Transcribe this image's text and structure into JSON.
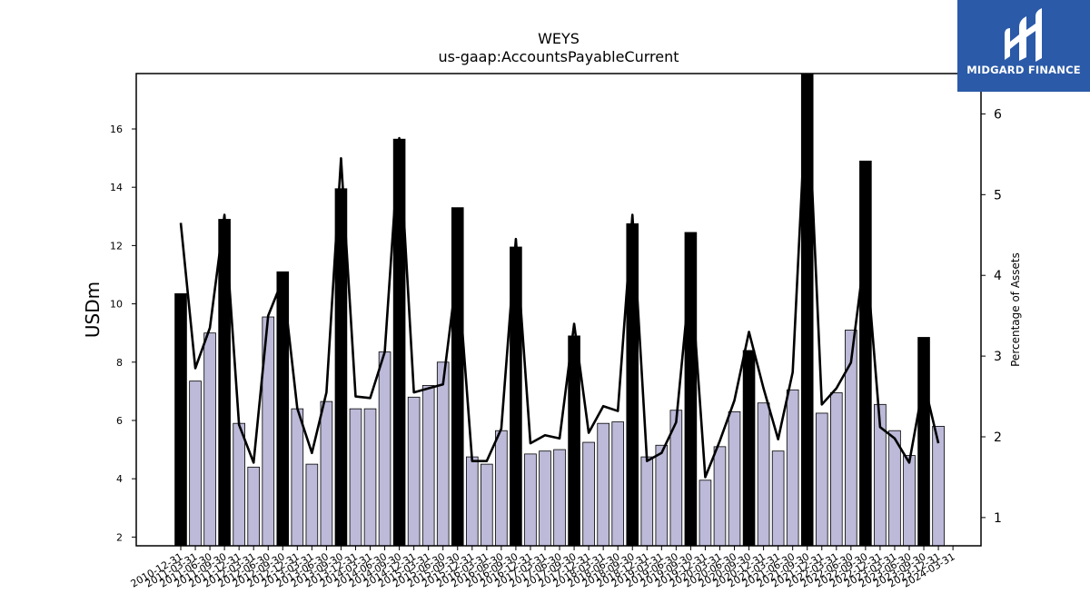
{
  "brand": {
    "name": "MIDGARD FINANCE",
    "bg_color": "#2b5aa8"
  },
  "chart_data": {
    "type": "bar",
    "title": "WEYS",
    "subtitle": "us-gaap:AccountsPayableCurrent",
    "ylabel": "USDm",
    "y2label": "Percentage of Assets",
    "ylim": [
      1.7,
      17.9
    ],
    "y2lim": [
      0.65,
      6.5
    ],
    "yticks": [
      2,
      4,
      6,
      8,
      10,
      12,
      14,
      16
    ],
    "y2ticks": [
      1,
      2,
      3,
      4,
      5,
      6
    ],
    "categories": [
      "2010-12-31",
      "2011-03-31",
      "2011-06-30",
      "2011-09-30",
      "2011-12-31",
      "2012-03-31",
      "2012-06-30",
      "2012-09-30",
      "2012-12-31",
      "2013-03-31",
      "2013-06-30",
      "2013-09-30",
      "2013-12-31",
      "2014-03-31",
      "2014-06-30",
      "2014-09-30",
      "2014-12-31",
      "2015-03-31",
      "2015-06-30",
      "2015-09-30",
      "2015-12-31",
      "2016-03-31",
      "2016-06-30",
      "2016-09-30",
      "2016-12-31",
      "2017-03-31",
      "2017-06-30",
      "2017-09-30",
      "2017-12-31",
      "2018-03-31",
      "2018-06-30",
      "2018-09-30",
      "2018-12-31",
      "2019-03-31",
      "2019-06-30",
      "2019-09-30",
      "2019-12-31",
      "2020-03-31",
      "2020-06-30",
      "2020-09-30",
      "2020-12-31",
      "2021-03-31",
      "2021-06-30",
      "2021-09-30",
      "2021-12-31",
      "2022-03-31",
      "2022-06-30",
      "2022-09-30",
      "2022-12-31",
      "2023-03-31",
      "2023-06-30",
      "2023-09-30",
      "2023-12-31",
      "2024-03-31"
    ],
    "series": [
      {
        "name": "",
        "type": "bar",
        "axis": "left",
        "unit": "USDm",
        "values": [
          10.35,
          7.35,
          9.0,
          12.9,
          5.9,
          4.4,
          9.55,
          11.1,
          6.4,
          4.5,
          6.65,
          13.95,
          6.4,
          6.4,
          8.35,
          15.65,
          6.8,
          7.2,
          8.0,
          13.3,
          4.75,
          4.5,
          5.65,
          11.95,
          4.85,
          4.95,
          5.0,
          8.9,
          5.25,
          5.9,
          5.95,
          12.75,
          4.75,
          5.15,
          6.35,
          12.45,
          3.95,
          5.1,
          6.3,
          8.4,
          6.6,
          4.95,
          7.05,
          17.9,
          6.25,
          6.95,
          9.1,
          14.9,
          6.55,
          5.65,
          4.8,
          8.85,
          5.8,
          null
        ],
        "highlight_indices": [
          0,
          3,
          7,
          11,
          15,
          19,
          23,
          27,
          31,
          35,
          39,
          43,
          47,
          51
        ],
        "highlight_color": "#000000",
        "color": "#bcbad8",
        "edge_color": "#000000"
      },
      {
        "name": "",
        "type": "line",
        "axis": "right",
        "unit": "Percentage of Assets",
        "values": [
          4.65,
          2.85,
          3.35,
          4.75,
          2.15,
          1.68,
          3.5,
          3.95,
          2.35,
          1.8,
          2.55,
          5.45,
          2.5,
          2.48,
          3.05,
          5.7,
          2.55,
          2.6,
          2.65,
          4.1,
          1.7,
          1.7,
          2.1,
          4.45,
          1.92,
          2.02,
          1.98,
          3.4,
          2.05,
          2.38,
          2.32,
          4.75,
          1.7,
          1.8,
          2.18,
          4.05,
          1.5,
          1.95,
          2.45,
          3.3,
          2.6,
          1.97,
          2.8,
          6.45,
          2.4,
          2.6,
          2.92,
          4.35,
          2.12,
          1.98,
          1.68,
          2.68,
          1.92,
          null
        ],
        "color": "#000000"
      }
    ],
    "grid": false,
    "legend": "none"
  }
}
